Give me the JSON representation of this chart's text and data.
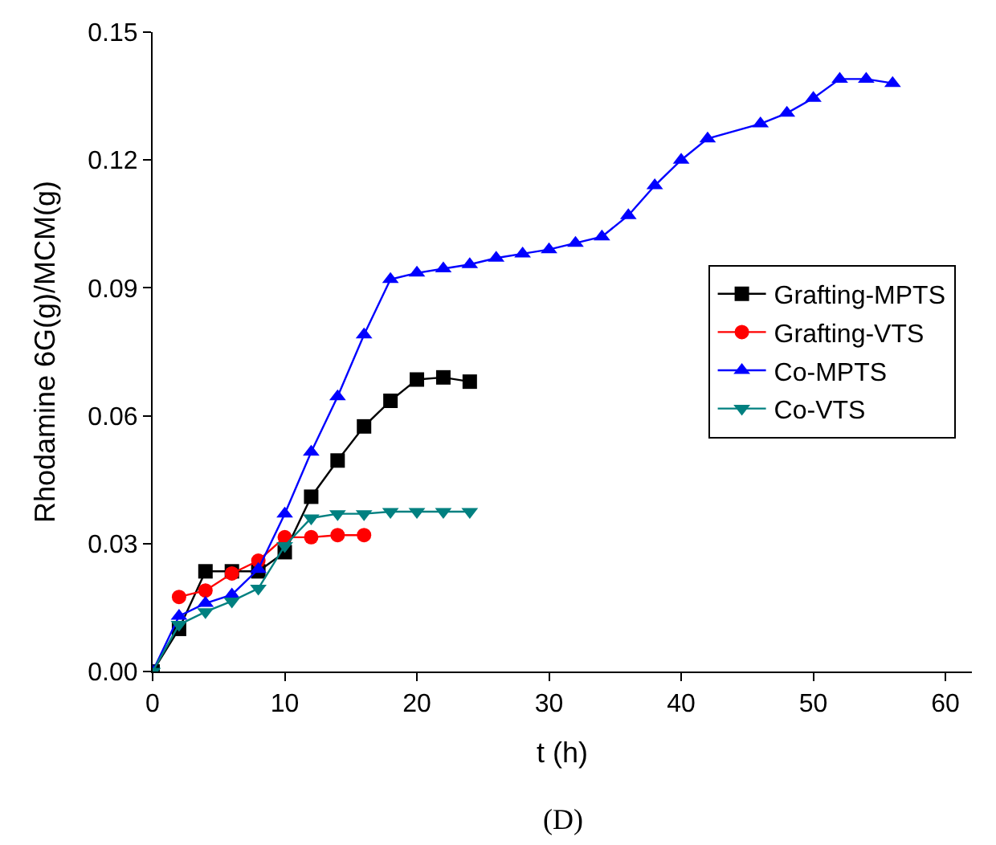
{
  "chart_data": {
    "type": "line",
    "xlabel": "t (h)",
    "ylabel": "Rhodamine 6G(g)/MCM(g)",
    "xlim": [
      0,
      62
    ],
    "xticks": [
      0,
      10,
      20,
      30,
      40,
      50,
      60
    ],
    "ylim": [
      0,
      0.15
    ],
    "yticks": [
      {
        "value": 0,
        "label": "0.00"
      },
      {
        "value": 0.03,
        "label": "0.03"
      },
      {
        "value": 0.06,
        "label": "0.06"
      },
      {
        "value": 0.09,
        "label": "0.09"
      },
      {
        "value": 0.12,
        "label": "0.12"
      },
      {
        "value": 0.15,
        "label": "0.15"
      }
    ],
    "legend": "right",
    "annotations": [
      "(D)"
    ],
    "series": [
      {
        "name": "Grafting-MPTS",
        "color": "#000000",
        "marker": "square",
        "x": [
          0,
          2,
          4,
          6,
          8,
          10,
          12,
          14,
          16,
          18,
          20,
          22,
          24
        ],
        "values": [
          0,
          0.01,
          0.0235,
          0.0235,
          0.0235,
          0.028,
          0.041,
          0.0495,
          0.0575,
          0.0635,
          0.0685,
          0.069,
          0.068
        ]
      },
      {
        "name": "Grafting-VTS",
        "color": "#ff0000",
        "marker": "circle",
        "x": [
          2,
          4,
          6,
          8,
          10,
          12,
          14,
          16
        ],
        "values": [
          0.0175,
          0.019,
          0.023,
          0.026,
          0.0315,
          0.0315,
          0.032,
          0.032
        ]
      },
      {
        "name": "Co-MPTS",
        "color": "#0000ff",
        "marker": "triangle",
        "x": [
          0,
          2,
          4,
          6,
          8,
          10,
          12,
          14,
          16,
          18,
          20,
          22,
          24,
          26,
          28,
          30,
          32,
          34,
          36,
          38,
          40,
          42,
          46,
          48,
          50,
          52,
          54,
          56
        ],
        "values": [
          0,
          0.013,
          0.016,
          0.018,
          0.024,
          0.037,
          0.0515,
          0.0645,
          0.079,
          0.092,
          0.0935,
          0.0945,
          0.0955,
          0.097,
          0.098,
          0.099,
          0.1005,
          0.102,
          0.107,
          0.114,
          0.12,
          0.125,
          0.1285,
          0.131,
          0.1345,
          0.139,
          0.139,
          0.138
        ]
      },
      {
        "name": "Co-VTS",
        "color": "#008080",
        "marker": "triangle-down",
        "x": [
          0,
          2,
          4,
          6,
          8,
          10,
          12,
          14,
          16,
          18,
          20,
          22,
          24
        ],
        "values": [
          0,
          0.011,
          0.014,
          0.0165,
          0.0195,
          0.0295,
          0.036,
          0.037,
          0.037,
          0.0375,
          0.0375,
          0.0375,
          0.0375
        ]
      }
    ]
  }
}
